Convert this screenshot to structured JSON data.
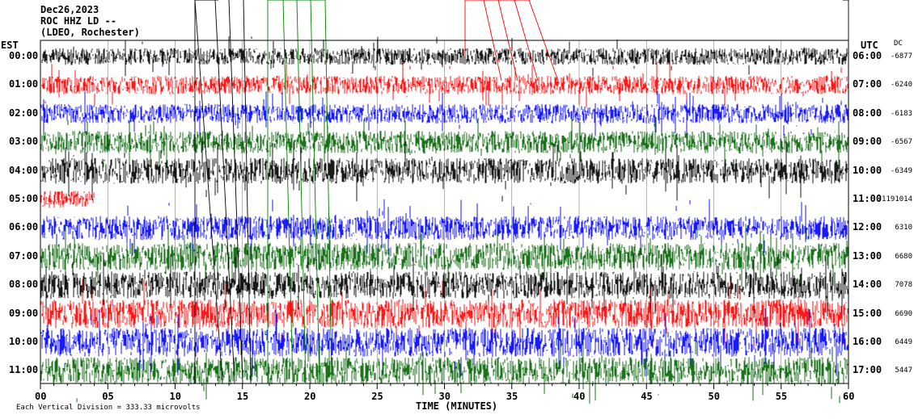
{
  "header": {
    "date": "Dec26,2023",
    "station": "ROC HHZ LD --",
    "network": "(LDEO, Rochester)"
  },
  "labels": {
    "left_tz": "EST",
    "right_tz": "UTC",
    "dc": "DC",
    "xlabel": "TIME (MINUTES)",
    "scale_note": "Each Vertical Division = 333.33 microvolts"
  },
  "colors": {
    "trace_cycle": [
      "#000000",
      "#ff0000",
      "#0000ff",
      "#006400"
    ],
    "grid": "#808080",
    "event_marker_black": "#000000",
    "event_marker_green": "#008000",
    "event_marker_red": "#ff0000"
  },
  "chart_data": {
    "type": "line",
    "subtype": "helicorder",
    "title": "Dec26,2023 ROC HHZ LD -- (LDEO, Rochester)",
    "xlabel": "TIME (MINUTES)",
    "xlim": [
      0,
      60
    ],
    "x_ticks": [
      "00",
      "05",
      "10",
      "15",
      "20",
      "25",
      "30",
      "35",
      "40",
      "45",
      "50",
      "55",
      "60"
    ],
    "rows": [
      {
        "est": "00:00",
        "utc": "06:00",
        "dc": "-6877",
        "color": "black",
        "noise": 0.35,
        "end_min": 60
      },
      {
        "est": "01:00",
        "utc": "07:00",
        "dc": "-6240",
        "color": "red",
        "noise": 0.45,
        "end_min": 60
      },
      {
        "est": "02:00",
        "utc": "08:00",
        "dc": "-6183",
        "color": "blue",
        "noise": 0.5,
        "end_min": 60
      },
      {
        "est": "03:00",
        "utc": "09:00",
        "dc": "-6567",
        "color": "green",
        "noise": 0.7,
        "end_min": 60
      },
      {
        "est": "04:00",
        "utc": "10:00",
        "dc": "-6349",
        "color": "black",
        "noise": 0.9,
        "end_min": 60
      },
      {
        "est": "05:00",
        "utc": "11:00",
        "dc": "-1191014",
        "color": "red",
        "noise": 0.35,
        "end_min": 4
      },
      {
        "est": "06:00",
        "utc": "12:00",
        "dc": "6310",
        "color": "blue",
        "noise": 0.8,
        "end_min": 60
      },
      {
        "est": "07:00",
        "utc": "13:00",
        "dc": "6680",
        "color": "green",
        "noise": 1.0,
        "end_min": 60
      },
      {
        "est": "08:00",
        "utc": "14:00",
        "dc": "7078",
        "color": "black",
        "noise": 1.0,
        "end_min": 60
      },
      {
        "est": "09:00",
        "utc": "15:00",
        "dc": "6690",
        "color": "red",
        "noise": 1.1,
        "end_min": 60
      },
      {
        "est": "10:00",
        "utc": "16:00",
        "dc": "6449",
        "color": "blue",
        "noise": 1.1,
        "end_min": 60
      },
      {
        "est": "11:00",
        "utc": "17:00",
        "dc": "5447",
        "color": "green",
        "noise": 1.0,
        "end_min": 60
      }
    ]
  }
}
